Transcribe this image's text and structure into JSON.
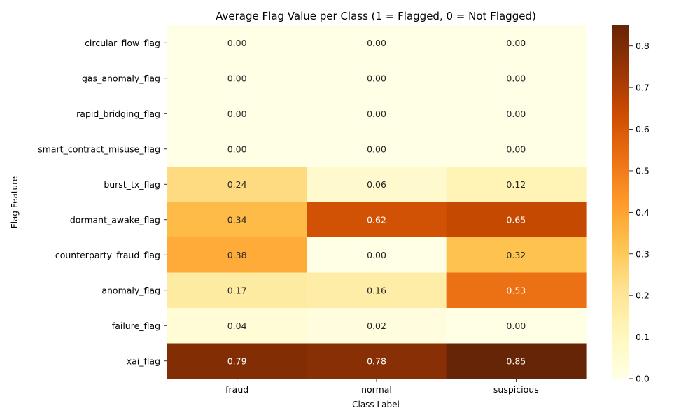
{
  "chart_data": {
    "type": "heatmap",
    "title": "Average Flag Value per Class (1 = Flagged, 0 = Not Flagged)",
    "xlabel": "Class Label",
    "ylabel": "Flag Feature",
    "columns": [
      "fraud",
      "normal",
      "suspicious"
    ],
    "rows": [
      "circular_flow_flag",
      "gas_anomaly_flag",
      "rapid_bridging_flag",
      "smart_contract_misuse_flag",
      "burst_tx_flag",
      "dormant_awake_flag",
      "counterparty_fraud_flag",
      "anomaly_flag",
      "failure_flag",
      "xai_flag"
    ],
    "values": [
      [
        0.0,
        0.0,
        0.0
      ],
      [
        0.0,
        0.0,
        0.0
      ],
      [
        0.0,
        0.0,
        0.0
      ],
      [
        0.0,
        0.0,
        0.0
      ],
      [
        0.24,
        0.06,
        0.12
      ],
      [
        0.34,
        0.62,
        0.65
      ],
      [
        0.38,
        0.0,
        0.32
      ],
      [
        0.17,
        0.16,
        0.53
      ],
      [
        0.04,
        0.02,
        0.0
      ],
      [
        0.79,
        0.78,
        0.85
      ]
    ],
    "colormap": "YlOrBr",
    "vmin": 0.0,
    "vmax": 0.85,
    "colorbar_ticks": [
      "0.0",
      "0.1",
      "0.2",
      "0.3",
      "0.4",
      "0.5",
      "0.6",
      "0.7",
      "0.8"
    ],
    "grid": false
  }
}
